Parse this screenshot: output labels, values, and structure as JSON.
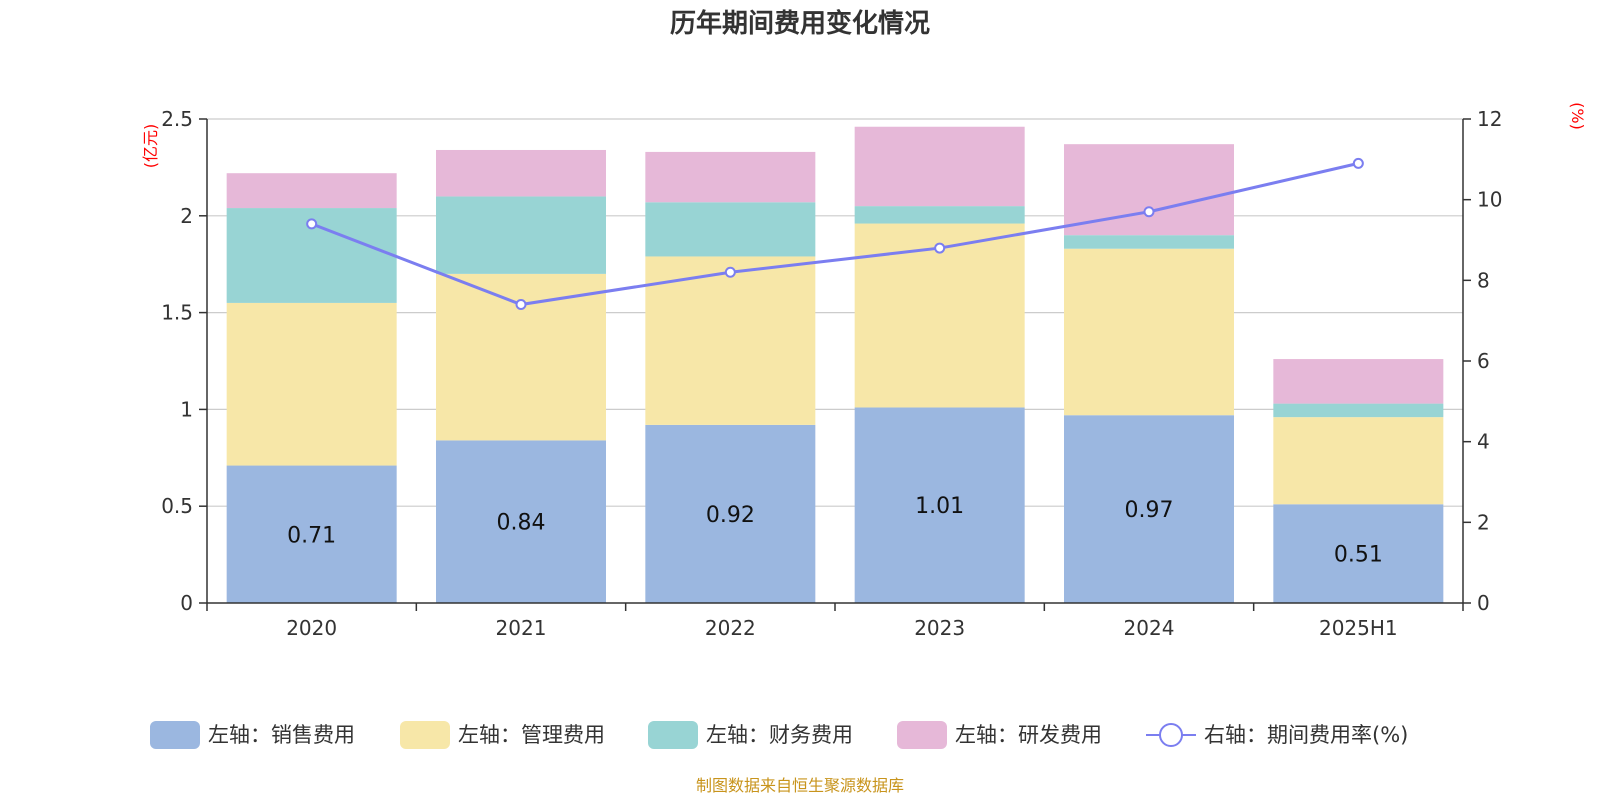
{
  "chart_data": {
    "type": "bar",
    "stacked": true,
    "title": "历年期间费用变化情况",
    "categories": [
      "2020",
      "2021",
      "2022",
      "2023",
      "2024",
      "2025H1"
    ],
    "y_left": {
      "unit": "(亿元)",
      "ylim": [
        0,
        2.5
      ],
      "ticks": [
        "0",
        "0.5",
        "1",
        "1.5",
        "2",
        "2.5"
      ],
      "tick_values": [
        0,
        0.5,
        1,
        1.5,
        2,
        2.5
      ]
    },
    "y_right": {
      "unit": "(%)",
      "ylim": [
        0,
        12
      ],
      "ticks": [
        "0",
        "2",
        "4",
        "6",
        "8",
        "10",
        "12"
      ],
      "tick_values": [
        0,
        2,
        4,
        6,
        8,
        10,
        12
      ]
    },
    "series": [
      {
        "name": "左轴：销售费用",
        "axis": "left",
        "kind": "bar",
        "color": "#9bb7e0",
        "values": [
          0.71,
          0.84,
          0.92,
          1.01,
          0.97,
          0.51
        ],
        "labels": [
          "0.71",
          "0.84",
          "0.92",
          "1.01",
          "0.97",
          "0.51"
        ]
      },
      {
        "name": "左轴：管理费用",
        "axis": "left",
        "kind": "bar",
        "color": "#f7e7a8",
        "values": [
          0.84,
          0.86,
          0.87,
          0.95,
          0.86,
          0.45
        ]
      },
      {
        "name": "左轴：财务费用",
        "axis": "left",
        "kind": "bar",
        "color": "#98d4d4",
        "values": [
          0.49,
          0.4,
          0.28,
          0.09,
          0.07,
          0.07
        ]
      },
      {
        "name": "左轴：研发费用",
        "axis": "left",
        "kind": "bar",
        "color": "#e6b8d8",
        "values": [
          0.18,
          0.24,
          0.26,
          0.41,
          0.47,
          0.23
        ]
      },
      {
        "name": "右轴：期间费用率(%)",
        "axis": "right",
        "kind": "line",
        "color": "#7b7ef0",
        "values": [
          9.4,
          7.4,
          8.2,
          8.8,
          9.7,
          10.9
        ]
      }
    ],
    "grid": true,
    "legend_position": "bottom",
    "source": "制图数据来自恒生聚源数据库"
  }
}
